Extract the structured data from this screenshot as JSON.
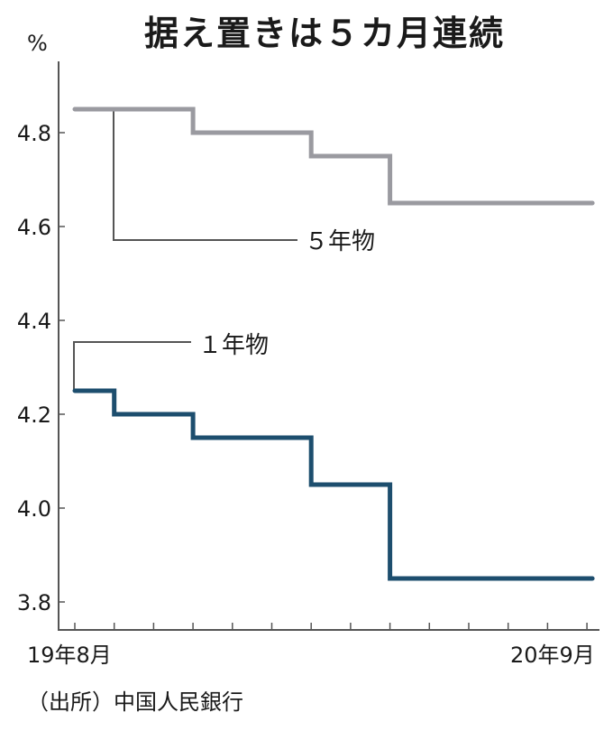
{
  "title": "据え置きは５カ月連続",
  "unit": "%",
  "source": "（出所）中国人民銀行",
  "x_labels": {
    "start": "19年8月",
    "end": "20年9月"
  },
  "y_ticks": [
    "4.8",
    "4.6",
    "4.4",
    "4.2",
    "4.0",
    "3.8"
  ],
  "series_labels": {
    "five_year": "５年物",
    "one_year": "１年物"
  },
  "colors": {
    "five_year": "#9a9aa0",
    "one_year": "#1d4e6e",
    "axis": "#555555",
    "callout": "#555555"
  },
  "chart_data": {
    "type": "line",
    "step": true,
    "title": "据え置きは５カ月連続",
    "xlabel": "",
    "ylabel": "%",
    "ylim": [
      3.75,
      4.9
    ],
    "x": [
      "19年8月",
      "19年9月",
      "19年10月",
      "19年11月",
      "19年12月",
      "20年1月",
      "20年2月",
      "20年3月",
      "20年4月",
      "20年5月",
      "20年6月",
      "20年7月",
      "20年8月",
      "20年9月"
    ],
    "series": [
      {
        "name": "５年物",
        "values": [
          4.85,
          4.85,
          4.85,
          4.8,
          4.8,
          4.8,
          4.75,
          4.75,
          4.65,
          4.65,
          4.65,
          4.65,
          4.65,
          4.65
        ]
      },
      {
        "name": "１年物",
        "values": [
          4.25,
          4.2,
          4.2,
          4.15,
          4.15,
          4.15,
          4.05,
          4.05,
          3.85,
          3.85,
          3.85,
          3.85,
          3.85,
          3.85
        ]
      }
    ],
    "y_tick_labels": [
      "3.8",
      "4.0",
      "4.2",
      "4.4",
      "4.6",
      "4.8"
    ],
    "x_tick_labels_shown": [
      "19年8月",
      "20年9月"
    ],
    "annotation": "（出所）中国人民銀行",
    "grid": false,
    "legend": "callout labels"
  }
}
